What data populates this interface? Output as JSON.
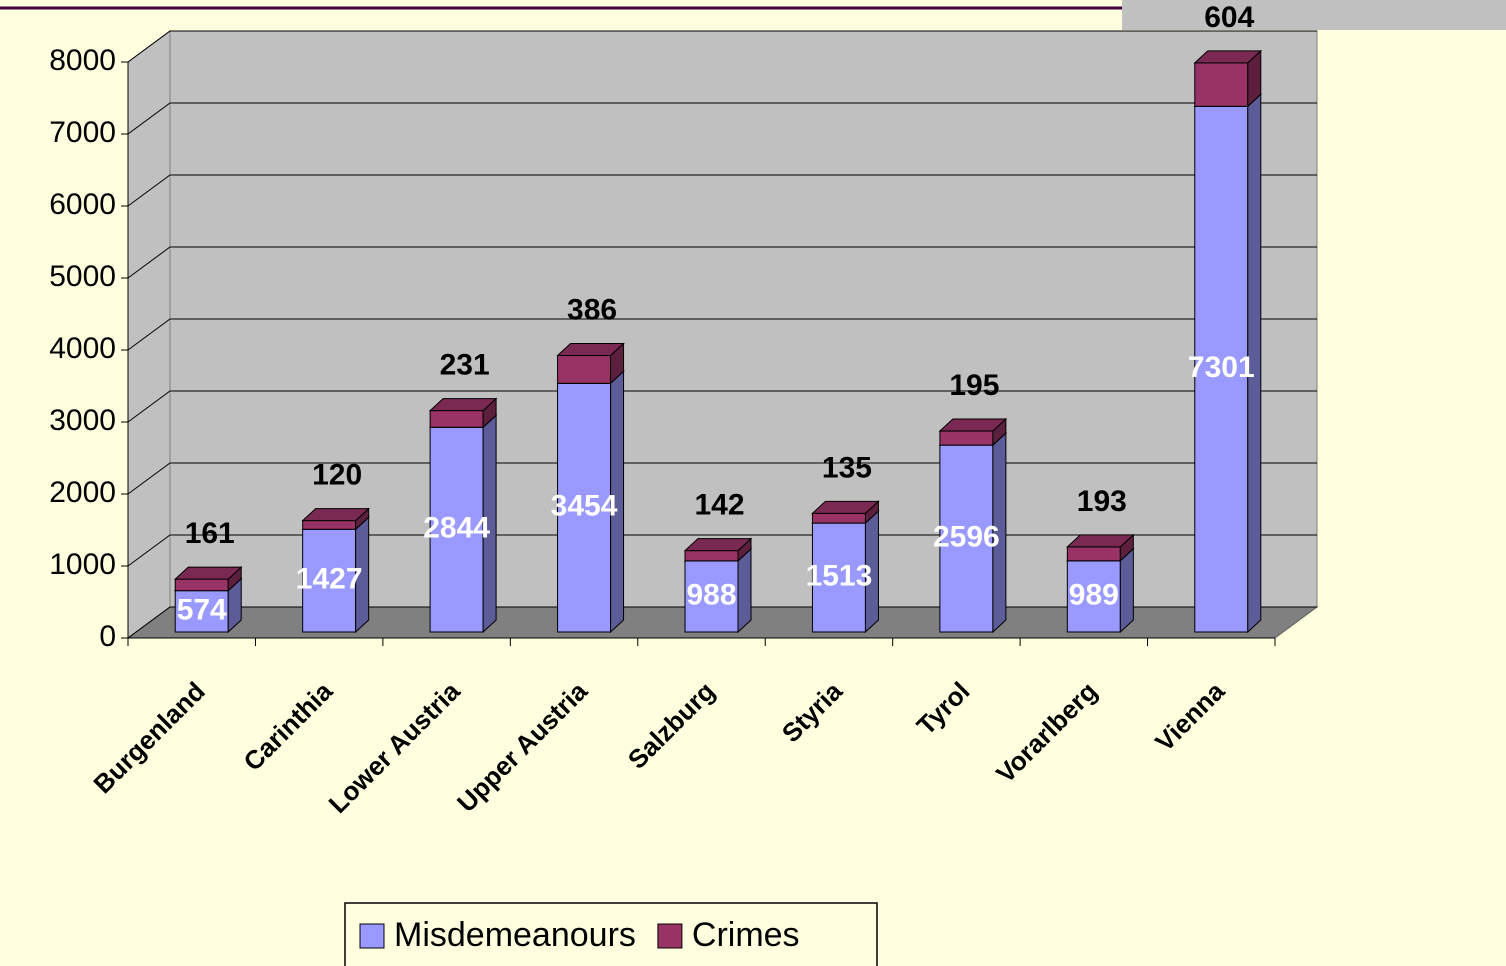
{
  "chart_data": {
    "type": "bar3d_stacked",
    "categories": [
      "Burgenland",
      "Carinthia",
      "Lower Austria",
      "Upper Austria",
      "Salzburg",
      "Styria",
      "Tyrol",
      "Vorarlberg",
      "Vienna"
    ],
    "series": [
      {
        "name": "Misdemeanours",
        "color": "#9999FF",
        "values": [
          574,
          1427,
          2844,
          3454,
          988,
          1513,
          2596,
          989,
          7301
        ]
      },
      {
        "name": "Crimes",
        "color": "#993366",
        "values": [
          161,
          120,
          231,
          386,
          142,
          135,
          195,
          193,
          604
        ]
      }
    ],
    "ylim": [
      0,
      8000
    ],
    "yticks": [
      0,
      1000,
      2000,
      3000,
      4000,
      5000,
      6000,
      7000,
      8000
    ],
    "grid": true,
    "legend": "bottom"
  }
}
